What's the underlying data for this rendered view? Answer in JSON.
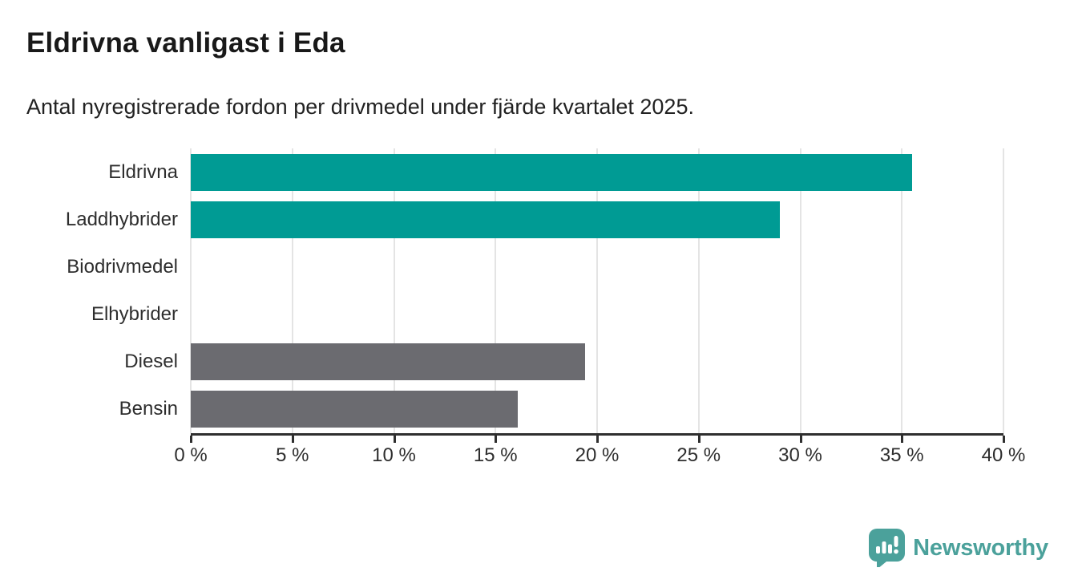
{
  "header": {
    "title": "Eldrivna vanligast i Eda",
    "subtitle": "Antal nyregistrerade fordon per drivmedel under fjärde kvartalet 2025."
  },
  "chart_data": {
    "type": "bar",
    "orientation": "horizontal",
    "title": "Eldrivna vanligast i Eda",
    "subtitle": "Antal nyregistrerade fordon per drivmedel under fjärde kvartalet 2025.",
    "categories": [
      "Eldrivna",
      "Laddhybrider",
      "Biodrivmedel",
      "Elhybrider",
      "Diesel",
      "Bensin"
    ],
    "values": [
      35.5,
      29,
      0,
      0,
      19.4,
      16.1
    ],
    "unit": "%",
    "xlim": [
      0,
      40
    ],
    "x_ticks": [
      0,
      5,
      10,
      15,
      20,
      25,
      30,
      35,
      40
    ],
    "x_tick_labels": [
      "0 %",
      "5 %",
      "10 %",
      "15 %",
      "20 %",
      "25 %",
      "30 %",
      "35 %",
      "40 %"
    ],
    "grid": true,
    "legend": "none",
    "bar_colors": [
      "#009b94",
      "#009b94",
      "#009b94",
      "#009b94",
      "#6b6b70",
      "#6b6b70"
    ]
  },
  "colors": {
    "electric_bar": "#009b94",
    "fossil_bar": "#6b6b70",
    "gridline": "#e4e4e4",
    "axis": "#2f2f2f",
    "text": "#2e2e2e",
    "brand_teal": "#4ba19b",
    "background": "#ffffff"
  },
  "footer": {
    "brand_label": "Newsworthy",
    "brand_icon": "newsworthy-chart-bubble-icon"
  }
}
